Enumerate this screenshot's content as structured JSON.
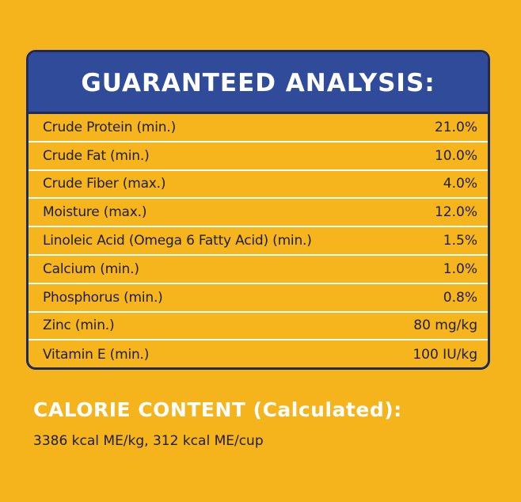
{
  "analysis": {
    "title": "GUARANTEED ANALYSIS:",
    "rows": [
      {
        "label": "Crude Protein (min.)",
        "value": "21.0%"
      },
      {
        "label": "Crude Fat (min.)",
        "value": "10.0%"
      },
      {
        "label": "Crude Fiber (max.)",
        "value": "4.0%"
      },
      {
        "label": "Moisture (max.)",
        "value": "12.0%"
      },
      {
        "label": "Linoleic Acid (Omega 6 Fatty Acid) (min.)",
        "value": "1.5%"
      },
      {
        "label": "Calcium (min.)",
        "value": "1.0%"
      },
      {
        "label": "Phosphorus (min.)",
        "value": "0.8%"
      },
      {
        "label": "Zinc (min.)",
        "value": "80 mg/kg"
      },
      {
        "label": "Vitamin E (min.)",
        "value": "100 IU/kg"
      }
    ]
  },
  "calorie": {
    "heading": "CALORIE CONTENT (Calculated):",
    "value": "3386 kcal ME/kg, 312 kcal ME/cup"
  },
  "colors": {
    "background": "#F5B41C",
    "header": "#2F4B9A",
    "border": "#1D2A5E",
    "heading_text": "#FFFFFF",
    "body_text": "#1E1E1E"
  }
}
